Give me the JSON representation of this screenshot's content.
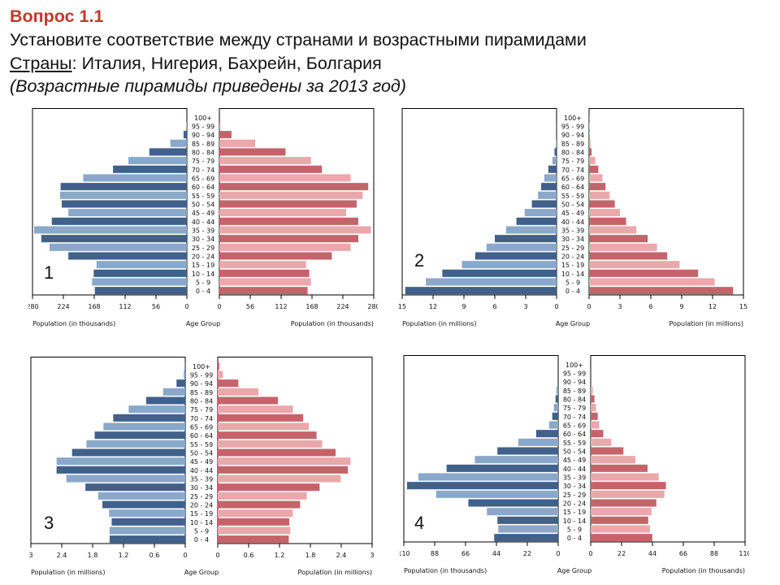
{
  "header": {
    "title": "Вопрос 1.1",
    "line1": "Установите соответствие между странами и возрастными пирамидами",
    "countries_label": "Страны",
    "countries_list": ": Италия, Нигерия, Бахрейн, Болгария",
    "note": "(Возрастные пирамиды приведены за 2013 год)"
  },
  "colors": {
    "male_dark": "#41608a",
    "male_light": "#8aa8c9",
    "female_dark": "#c4646a",
    "female_light": "#eaa8ab"
  },
  "age_groups": [
    "0 - 4",
    "5 - 9",
    "10 - 14",
    "15 - 19",
    "20 - 24",
    "25 - 29",
    "30 - 34",
    "35 - 39",
    "40 - 44",
    "45 - 49",
    "50 - 54",
    "55 - 59",
    "60 - 64",
    "65 - 69",
    "70 - 74",
    "75 - 79",
    "80 - 84",
    "85 - 89",
    "90 - 94",
    "95 - 99",
    "100+"
  ],
  "chart_data": [
    {
      "type": "bar",
      "label": "1",
      "orientation": "population-pyramid",
      "xlabel_left": "Population (in thousands)",
      "xlabel_center": "Age Group",
      "xlabel_right": "Population (in thousands)",
      "xlim": [
        0,
        280
      ],
      "ticks_left": [
        "280",
        "224",
        "168",
        "112",
        "56",
        "0"
      ],
      "ticks_right": [
        "0",
        "56",
        "112",
        "168",
        "224",
        "280"
      ],
      "male": [
        167,
        172,
        169,
        164,
        215,
        249,
        264,
        277,
        245,
        215,
        227,
        230,
        229,
        188,
        134,
        106,
        68,
        30,
        6,
        1,
        0
      ],
      "female": [
        160,
        166,
        163,
        157,
        204,
        238,
        252,
        275,
        252,
        230,
        249,
        260,
        270,
        238,
        186,
        166,
        120,
        65,
        22,
        2,
        0
      ]
    },
    {
      "type": "bar",
      "label": "2",
      "orientation": "population-pyramid",
      "xlabel_left": "Population (in millions)",
      "xlabel_center": "Age Group",
      "xlabel_right": "Population (in millions)",
      "xlim": [
        0,
        15
      ],
      "ticks_left": [
        "15",
        "12",
        "9",
        "6",
        "3",
        "0"
      ],
      "ticks_right": [
        "0",
        "3",
        "6",
        "9",
        "12",
        "15"
      ],
      "male": [
        14.7,
        12.7,
        11.1,
        9.2,
        7.9,
        6.8,
        6.0,
        4.9,
        3.9,
        3.1,
        2.4,
        1.8,
        1.5,
        1.2,
        0.8,
        0.4,
        0.2,
        0.05,
        0.02,
        0.01,
        0
      ],
      "female": [
        14.0,
        12.2,
        10.6,
        8.8,
        7.6,
        6.6,
        5.7,
        4.6,
        3.6,
        3.0,
        2.5,
        2.0,
        1.6,
        1.3,
        0.9,
        0.6,
        0.25,
        0.15,
        0.05,
        0.03,
        0.02
      ]
    },
    {
      "type": "bar",
      "label": "3",
      "orientation": "population-pyramid",
      "xlabel_left": "Population (in millions)",
      "xlabel_center": "Age Group",
      "xlabel_right": "Population (in millions)",
      "xlim": [
        0,
        3
      ],
      "ticks_left": [
        "3",
        "2.4",
        "1.8",
        "1.2",
        "0.6",
        "0"
      ],
      "ticks_right": [
        "0",
        "0.6",
        "1.2",
        "1.8",
        "2.4",
        "3"
      ],
      "male": [
        1.47,
        1.47,
        1.43,
        1.48,
        1.61,
        1.69,
        1.94,
        2.31,
        2.5,
        2.5,
        2.2,
        1.92,
        1.76,
        1.59,
        1.4,
        1.1,
        0.76,
        0.43,
        0.17,
        0.03,
        0.01
      ],
      "female": [
        1.38,
        1.41,
        1.39,
        1.46,
        1.6,
        1.73,
        1.98,
        2.39,
        2.53,
        2.58,
        2.29,
        2.03,
        1.92,
        1.77,
        1.66,
        1.46,
        1.17,
        0.79,
        0.4,
        0.1,
        0.03
      ]
    },
    {
      "type": "bar",
      "label": "4",
      "orientation": "population-pyramid",
      "xlabel_left": "Population (in thousands)",
      "xlabel_center": "Age Group",
      "xlabel_right": "Population (in thousands)",
      "xlim": [
        0,
        110
      ],
      "ticks_left": [
        "110",
        "88",
        "66",
        "44",
        "22",
        "0"
      ],
      "ticks_right": [
        "0",
        "22",
        "44",
        "66",
        "88",
        "110"
      ],
      "male": [
        45.6,
        42.7,
        43.3,
        50.8,
        64,
        87,
        107.7,
        99.6,
        79.5,
        59.4,
        43.3,
        28.4,
        15.7,
        6.5,
        4.2,
        3.1,
        1.9,
        1.3,
        0,
        0,
        0
      ],
      "female": [
        43.9,
        42.2,
        41,
        43.3,
        46.8,
        52.5,
        53.6,
        48.5,
        40.5,
        31.9,
        23.3,
        14.7,
        9.0,
        6.1,
        5.0,
        3.8,
        2.7,
        1.5,
        0,
        0,
        0
      ]
    }
  ]
}
